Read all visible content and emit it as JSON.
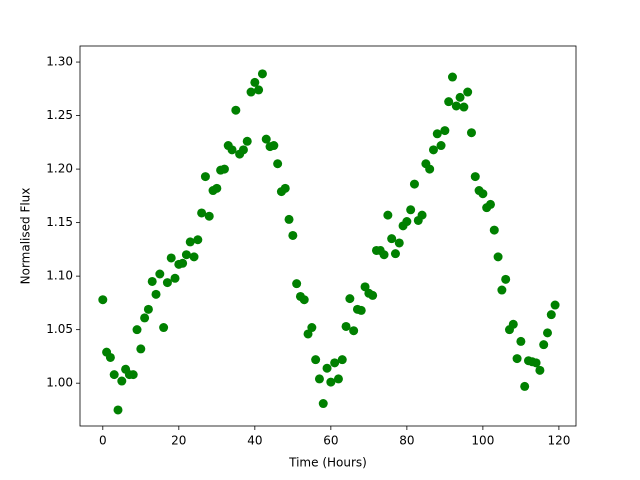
{
  "chart_data": {
    "type": "scatter",
    "x_label": "Time (Hours)",
    "y_label": "Normalised Flux",
    "color": "#008000",
    "grid": false,
    "xlim": [
      -6,
      124.5
    ],
    "ylim": [
      0.96,
      1.315
    ],
    "xticks": [
      0,
      20,
      40,
      60,
      80,
      100,
      120
    ],
    "yticks": [
      {
        "value": 1,
        "label": "1.00"
      },
      1.05,
      {
        "value": 1.1,
        "label": "1.10"
      },
      1.15,
      {
        "value": 1.2,
        "label": "1.20"
      },
      1.25,
      {
        "value": 1.3,
        "label": "1.30"
      }
    ],
    "x": [
      0,
      1,
      2,
      3,
      4,
      5,
      6,
      7,
      8,
      9,
      10,
      11,
      12,
      13,
      14,
      15,
      16,
      17,
      18,
      19,
      20,
      21,
      22,
      23,
      24,
      25,
      26,
      27,
      28,
      29,
      30,
      31,
      32,
      33,
      34,
      35,
      36,
      37,
      38,
      39,
      40,
      41,
      42,
      43,
      44,
      45,
      46,
      47,
      48,
      49,
      50,
      51,
      52,
      53,
      54,
      55,
      56,
      57,
      58,
      59,
      60,
      61,
      62,
      63,
      64,
      65,
      66,
      67,
      68,
      69,
      70,
      71,
      72,
      73,
      74,
      75,
      76,
      77,
      78,
      79,
      80,
      81,
      82,
      83,
      84,
      85,
      86,
      87,
      88,
      89,
      90,
      91,
      92,
      93,
      94,
      95,
      96,
      97,
      98,
      99,
      100,
      101,
      102,
      103,
      104,
      105,
      106,
      107,
      108,
      109,
      110,
      111,
      112,
      113,
      114,
      115,
      116,
      117,
      118,
      119
    ],
    "values": [
      1.078,
      1.029,
      1.024,
      1.008,
      0.975,
      1.002,
      1.013,
      1.008,
      1.008,
      1.05,
      1.032,
      1.061,
      1.069,
      1.095,
      1.083,
      1.102,
      1.052,
      1.094,
      1.117,
      1.098,
      1.111,
      1.112,
      1.12,
      1.132,
      1.118,
      1.134,
      1.159,
      1.193,
      1.156,
      1.18,
      1.182,
      1.199,
      1.2,
      1.222,
      1.218,
      1.255,
      1.214,
      1.218,
      1.226,
      1.272,
      1.281,
      1.274,
      1.289,
      1.228,
      1.221,
      1.222,
      1.205,
      1.179,
      1.182,
      1.153,
      1.138,
      1.093,
      1.081,
      1.078,
      1.046,
      1.052,
      1.022,
      1.004,
      0.981,
      1.014,
      1.001,
      1.019,
      1.004,
      1.022,
      1.053,
      1.079,
      1.049,
      1.069,
      1.068,
      1.09,
      1.084,
      1.082,
      1.124,
      1.124,
      1.12,
      1.157,
      1.135,
      1.121,
      1.131,
      1.147,
      1.151,
      1.162,
      1.186,
      1.152,
      1.157,
      1.205,
      1.2,
      1.218,
      1.233,
      1.222,
      1.236,
      1.263,
      1.286,
      1.259,
      1.267,
      1.258,
      1.272,
      1.234,
      1.193,
      1.18,
      1.177,
      1.164,
      1.167,
      1.143,
      1.118,
      1.087,
      1.097,
      1.05,
      1.055,
      1.023,
      1.039,
      0.997,
      1.021,
      1.02,
      1.019,
      1.012,
      1.036,
      1.047,
      1.064,
      1.073
    ]
  }
}
